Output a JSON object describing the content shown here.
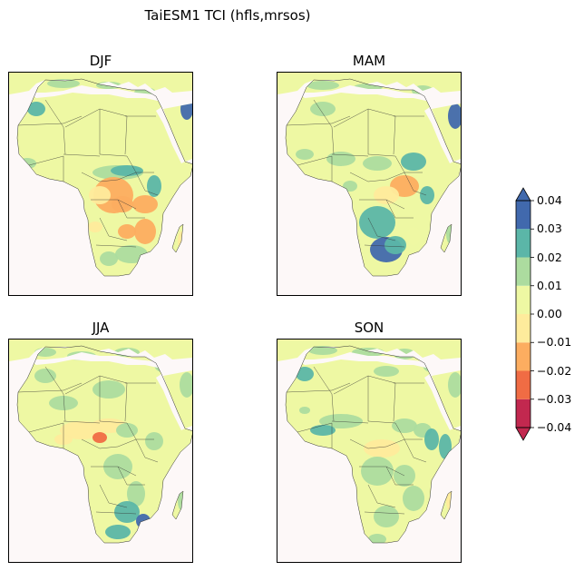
{
  "title": "TaiESM1 TCI (hfls,mrsos)",
  "panels": [
    {
      "season": "DJF"
    },
    {
      "season": "MAM"
    },
    {
      "season": "JJA"
    },
    {
      "season": "SON"
    }
  ],
  "colorbar": {
    "ticks": [
      "0.04",
      "0.03",
      "0.02",
      "0.01",
      "0.00",
      "−0.01",
      "−0.02",
      "−0.03",
      "−0.04"
    ],
    "levels": [
      -0.04,
      -0.03,
      -0.02,
      -0.01,
      0.0,
      0.01,
      0.02,
      0.03,
      0.04
    ],
    "colors": [
      "#c2284f",
      "#f06c44",
      "#fcad60",
      "#feeb9c",
      "#eef8a3",
      "#acdc9f",
      "#5bb6a8",
      "#4169ad"
    ],
    "extend": "both"
  },
  "colors": {
    "ocean": "#fdf8f8",
    "land_default": "#eef8a3",
    "border": "#333333"
  }
}
